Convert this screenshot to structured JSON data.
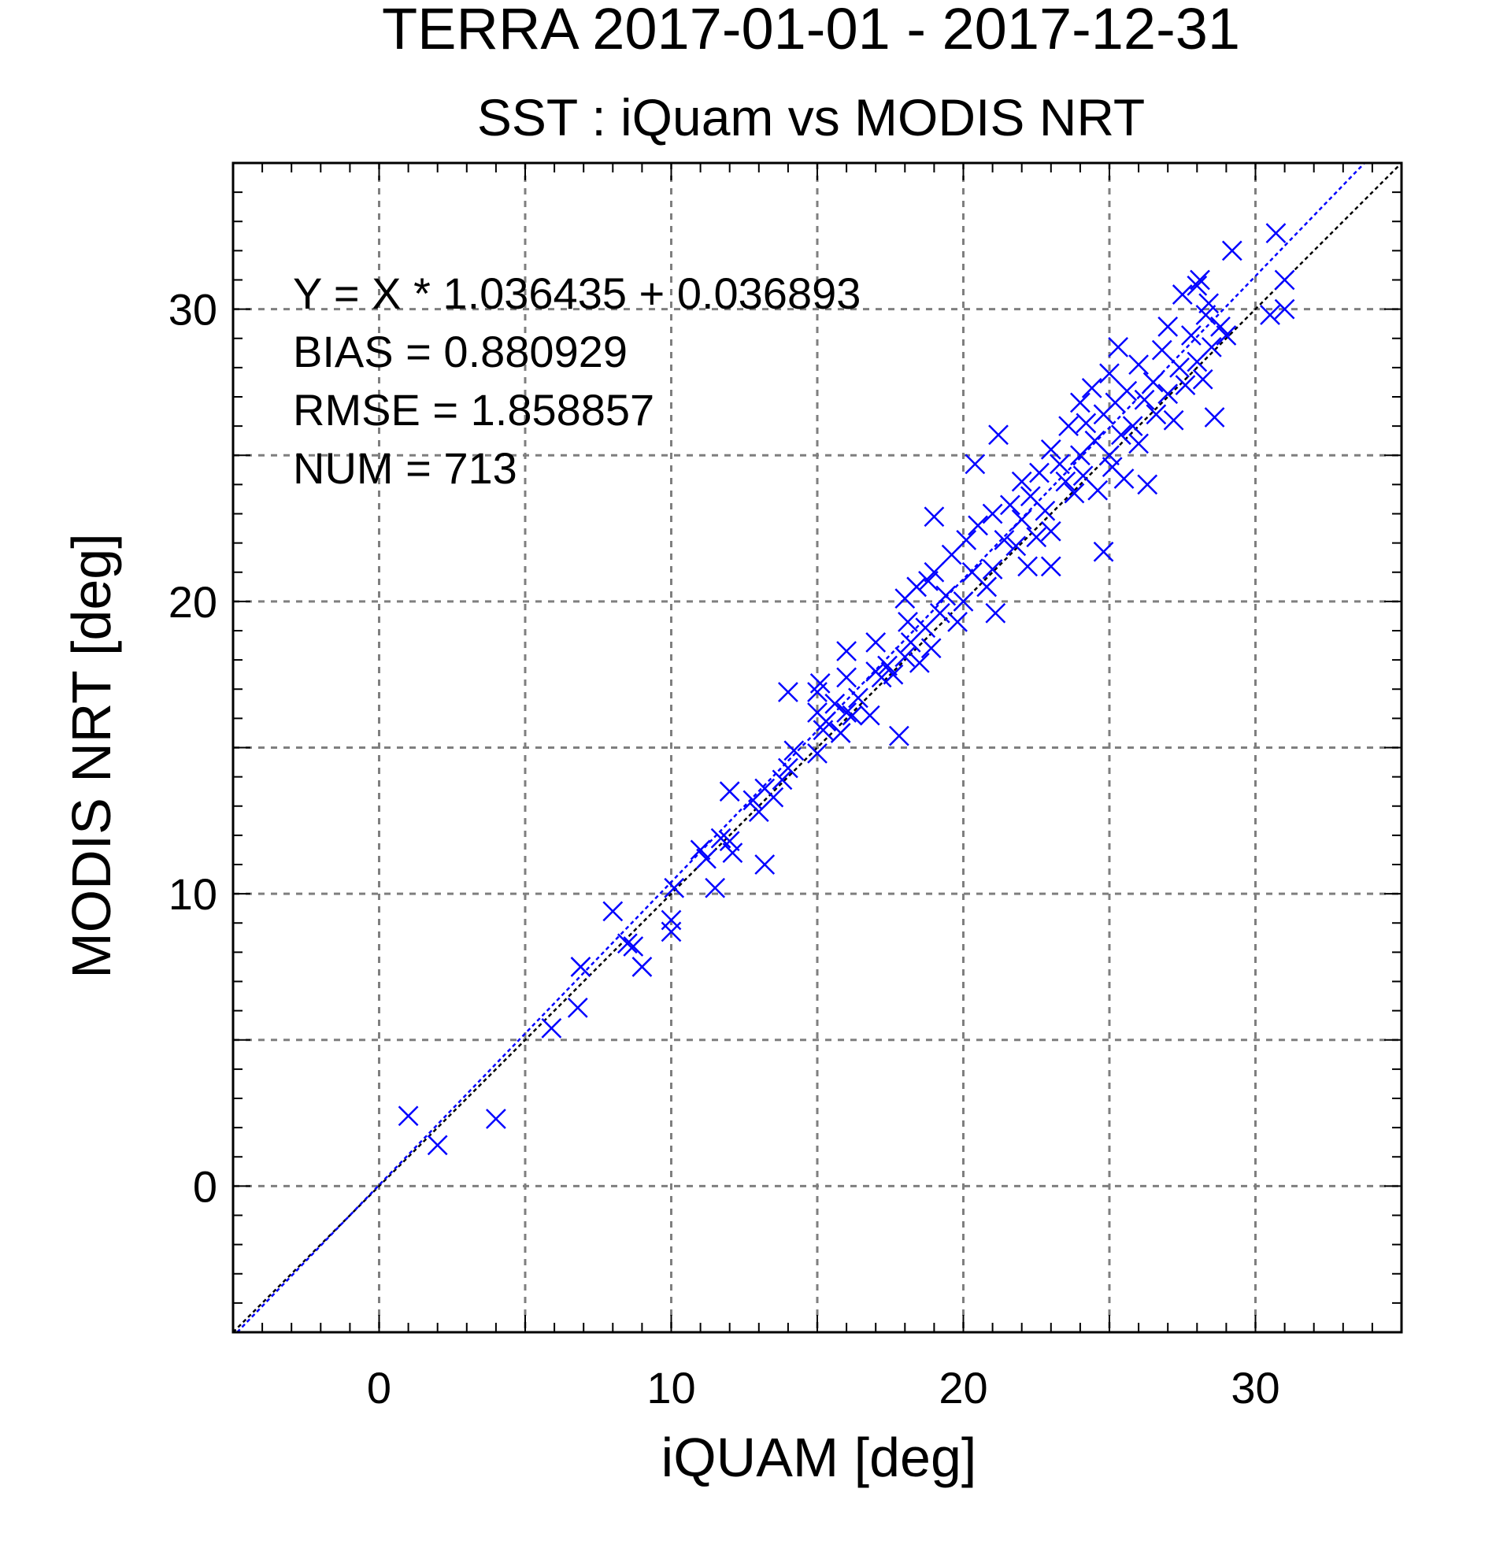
{
  "chart_data": {
    "type": "scatter",
    "title": "TERRA  2017-01-01 - 2017-12-31",
    "subtitle": "SST : iQuam vs MODIS NRT",
    "xlabel": "iQUAM [deg]",
    "ylabel": "MODIS NRT [deg]",
    "xlim": [
      -5,
      35
    ],
    "ylim": [
      -5,
      35
    ],
    "xticks": [
      0,
      10,
      20,
      30
    ],
    "yticks": [
      0,
      10,
      20,
      30
    ],
    "grid": true,
    "stats_text": [
      "Y = X * 1.036435 + 0.036893",
      "BIAS = 0.880929",
      "RMSE = 1.858857",
      "NUM = 713"
    ],
    "fit_line": {
      "slope": 1.036435,
      "intercept": 0.036893,
      "color": "#0000ff"
    },
    "identity_line": {
      "color": "#000000"
    },
    "marker_color": "#0000ff",
    "points": [
      [
        1.0,
        2.4
      ],
      [
        2.0,
        1.4
      ],
      [
        4.0,
        2.3
      ],
      [
        5.9,
        5.4
      ],
      [
        6.8,
        6.1
      ],
      [
        6.9,
        7.5
      ],
      [
        8.0,
        9.4
      ],
      [
        8.5,
        8.3
      ],
      [
        8.7,
        8.2
      ],
      [
        9.0,
        7.5
      ],
      [
        10.0,
        8.7
      ],
      [
        10.0,
        9.1
      ],
      [
        10.1,
        10.2
      ],
      [
        11.0,
        11.5
      ],
      [
        11.2,
        11.2
      ],
      [
        11.5,
        10.2
      ],
      [
        11.7,
        11.9
      ],
      [
        12.0,
        11.8
      ],
      [
        12.1,
        11.4
      ],
      [
        12.0,
        13.5
      ],
      [
        12.8,
        13.2
      ],
      [
        13.0,
        12.8
      ],
      [
        13.2,
        13.6
      ],
      [
        13.2,
        11.0
      ],
      [
        13.5,
        13.3
      ],
      [
        13.8,
        13.9
      ],
      [
        14.0,
        14.3
      ],
      [
        14.2,
        14.9
      ],
      [
        14.0,
        16.9
      ],
      [
        15.0,
        14.8
      ],
      [
        15.0,
        16.2
      ],
      [
        15.0,
        16.9
      ],
      [
        15.1,
        17.2
      ],
      [
        15.2,
        15.6
      ],
      [
        15.3,
        15.9
      ],
      [
        15.6,
        16.5
      ],
      [
        15.8,
        15.5
      ],
      [
        16.0,
        16.2
      ],
      [
        16.0,
        17.4
      ],
      [
        16.0,
        18.3
      ],
      [
        16.2,
        16.1
      ],
      [
        16.4,
        16.7
      ],
      [
        16.8,
        16.1
      ],
      [
        17.0,
        17.6
      ],
      [
        17.0,
        18.6
      ],
      [
        17.2,
        17.4
      ],
      [
        17.4,
        17.8
      ],
      [
        17.6,
        17.5
      ],
      [
        17.8,
        15.4
      ],
      [
        18.0,
        18.1
      ],
      [
        18.0,
        20.1
      ],
      [
        18.1,
        19.3
      ],
      [
        18.2,
        18.6
      ],
      [
        18.4,
        20.5
      ],
      [
        18.5,
        17.9
      ],
      [
        18.7,
        19.1
      ],
      [
        18.8,
        20.7
      ],
      [
        18.9,
        18.4
      ],
      [
        19.0,
        21.0
      ],
      [
        19.0,
        22.9
      ],
      [
        19.2,
        19.6
      ],
      [
        19.4,
        20.2
      ],
      [
        19.6,
        21.6
      ],
      [
        19.8,
        19.3
      ],
      [
        20.0,
        20.0
      ],
      [
        20.1,
        22.1
      ],
      [
        20.3,
        21.0
      ],
      [
        20.4,
        24.7
      ],
      [
        20.5,
        22.6
      ],
      [
        20.8,
        20.5
      ],
      [
        21.0,
        21.1
      ],
      [
        21.0,
        23.0
      ],
      [
        21.1,
        19.6
      ],
      [
        21.2,
        25.7
      ],
      [
        21.4,
        22.1
      ],
      [
        21.6,
        23.3
      ],
      [
        21.8,
        21.9
      ],
      [
        22.0,
        24.1
      ],
      [
        22.0,
        22.8
      ],
      [
        22.2,
        21.2
      ],
      [
        22.3,
        23.6
      ],
      [
        22.5,
        22.2
      ],
      [
        22.6,
        24.4
      ],
      [
        22.8,
        23.1
      ],
      [
        23.0,
        25.2
      ],
      [
        23.0,
        22.4
      ],
      [
        23.0,
        21.2
      ],
      [
        23.3,
        24.7
      ],
      [
        23.5,
        24.1
      ],
      [
        23.6,
        26.0
      ],
      [
        23.8,
        23.7
      ],
      [
        24.0,
        25.0
      ],
      [
        24.0,
        26.8
      ],
      [
        24.1,
        24.3
      ],
      [
        24.2,
        26.1
      ],
      [
        24.4,
        27.3
      ],
      [
        24.5,
        25.5
      ],
      [
        24.6,
        23.8
      ],
      [
        24.8,
        26.4
      ],
      [
        24.8,
        21.7
      ],
      [
        25.0,
        25.0
      ],
      [
        25.0,
        27.8
      ],
      [
        25.1,
        24.6
      ],
      [
        25.2,
        26.8
      ],
      [
        25.3,
        28.7
      ],
      [
        25.4,
        25.7
      ],
      [
        25.5,
        24.2
      ],
      [
        25.6,
        27.2
      ],
      [
        25.8,
        26.0
      ],
      [
        26.0,
        28.1
      ],
      [
        26.0,
        25.4
      ],
      [
        26.2,
        26.9
      ],
      [
        26.3,
        24.0
      ],
      [
        26.5,
        27.5
      ],
      [
        26.6,
        26.4
      ],
      [
        26.8,
        28.6
      ],
      [
        27.0,
        27.1
      ],
      [
        27.0,
        29.4
      ],
      [
        27.2,
        26.2
      ],
      [
        27.4,
        28.0
      ],
      [
        27.5,
        30.5
      ],
      [
        27.6,
        27.4
      ],
      [
        27.8,
        29.1
      ],
      [
        28.0,
        30.8
      ],
      [
        28.0,
        28.2
      ],
      [
        28.1,
        31.0
      ],
      [
        28.2,
        27.6
      ],
      [
        28.3,
        29.8
      ],
      [
        28.4,
        30.2
      ],
      [
        28.5,
        28.7
      ],
      [
        28.6,
        26.3
      ],
      [
        28.8,
        29.4
      ],
      [
        29.0,
        29.1
      ],
      [
        29.2,
        32.0
      ],
      [
        30.7,
        32.6
      ],
      [
        31.0,
        30.0
      ],
      [
        31.0,
        31.0
      ],
      [
        30.5,
        29.8
      ]
    ]
  }
}
